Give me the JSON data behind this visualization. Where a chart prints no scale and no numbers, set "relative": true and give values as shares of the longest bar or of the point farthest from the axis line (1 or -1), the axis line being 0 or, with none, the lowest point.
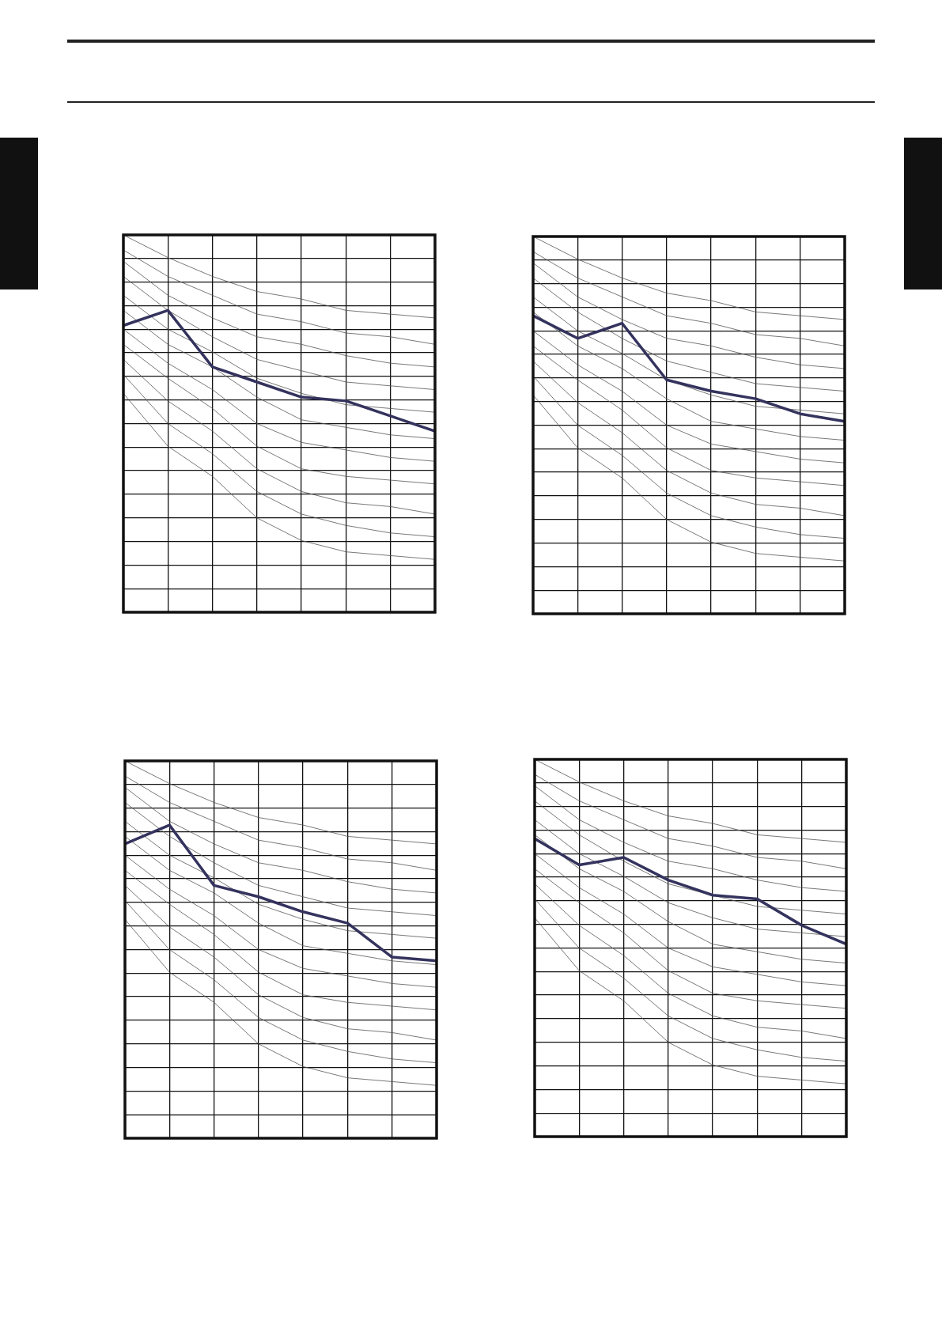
{
  "chart_data": [
    {
      "type": "line",
      "relative": true,
      "grid": true,
      "marker": "none",
      "categories": [
        null,
        null,
        null,
        null,
        null,
        null,
        null,
        null
      ],
      "series": [
        {
          "color": "#34335e",
          "values": [
            0.76,
            0.8,
            0.65,
            0.61,
            0.57,
            0.56,
            0.52,
            0.48
          ]
        },
        {
          "color": "#555555",
          "values": [
            1.0,
            0.94,
            0.89,
            0.85,
            0.83,
            0.8,
            0.79,
            0.78
          ]
        },
        {
          "color": "#555555",
          "values": [
            0.96,
            0.89,
            0.84,
            0.79,
            0.77,
            0.74,
            0.73,
            0.71
          ]
        },
        {
          "color": "#555555",
          "values": [
            0.93,
            0.84,
            0.78,
            0.73,
            0.71,
            0.68,
            0.66,
            0.65
          ]
        },
        {
          "color": "#555555",
          "values": [
            0.89,
            0.8,
            0.73,
            0.67,
            0.64,
            0.61,
            0.6,
            0.59
          ]
        },
        {
          "color": "#555555",
          "values": [
            0.84,
            0.75,
            0.69,
            0.62,
            0.58,
            0.55,
            0.54,
            0.53
          ]
        },
        {
          "color": "#555555",
          "values": [
            0.8,
            0.71,
            0.65,
            0.57,
            0.51,
            0.49,
            0.47,
            0.46
          ]
        },
        {
          "color": "#555555",
          "values": [
            0.75,
            0.66,
            0.59,
            0.5,
            0.45,
            0.43,
            0.41,
            0.4
          ]
        },
        {
          "color": "#555555",
          "values": [
            0.71,
            0.62,
            0.54,
            0.44,
            0.38,
            0.36,
            0.35,
            0.34
          ]
        },
        {
          "color": "#555555",
          "values": [
            0.67,
            0.56,
            0.48,
            0.38,
            0.32,
            0.29,
            0.28,
            0.26
          ]
        },
        {
          "color": "#555555",
          "values": [
            0.63,
            0.5,
            0.42,
            0.32,
            0.26,
            0.23,
            0.21,
            0.2
          ]
        },
        {
          "color": "#555555",
          "values": [
            0.58,
            0.44,
            0.36,
            0.25,
            0.19,
            0.16,
            0.15,
            0.14
          ]
        }
      ]
    },
    {
      "type": "line",
      "relative": true,
      "grid": true,
      "marker": "none",
      "categories": [
        null,
        null,
        null,
        null,
        null,
        null,
        null,
        null
      ],
      "series": [
        {
          "color": "#34335e",
          "values": [
            0.79,
            0.73,
            0.77,
            0.62,
            0.59,
            0.57,
            0.53,
            0.51
          ]
        },
        {
          "color": "#555555",
          "values": [
            1.0,
            0.94,
            0.89,
            0.85,
            0.83,
            0.8,
            0.79,
            0.78
          ]
        },
        {
          "color": "#555555",
          "values": [
            0.96,
            0.89,
            0.84,
            0.79,
            0.77,
            0.74,
            0.73,
            0.71
          ]
        },
        {
          "color": "#555555",
          "values": [
            0.93,
            0.84,
            0.78,
            0.73,
            0.71,
            0.68,
            0.66,
            0.65
          ]
        },
        {
          "color": "#555555",
          "values": [
            0.89,
            0.8,
            0.73,
            0.67,
            0.64,
            0.61,
            0.6,
            0.59
          ]
        },
        {
          "color": "#555555",
          "values": [
            0.84,
            0.75,
            0.69,
            0.62,
            0.58,
            0.55,
            0.54,
            0.53
          ]
        },
        {
          "color": "#555555",
          "values": [
            0.8,
            0.71,
            0.65,
            0.57,
            0.51,
            0.49,
            0.47,
            0.46
          ]
        },
        {
          "color": "#555555",
          "values": [
            0.75,
            0.66,
            0.59,
            0.5,
            0.45,
            0.43,
            0.41,
            0.4
          ]
        },
        {
          "color": "#555555",
          "values": [
            0.71,
            0.62,
            0.54,
            0.44,
            0.38,
            0.36,
            0.35,
            0.34
          ]
        },
        {
          "color": "#555555",
          "values": [
            0.67,
            0.56,
            0.48,
            0.38,
            0.32,
            0.29,
            0.28,
            0.26
          ]
        },
        {
          "color": "#555555",
          "values": [
            0.63,
            0.5,
            0.42,
            0.32,
            0.26,
            0.23,
            0.21,
            0.2
          ]
        },
        {
          "color": "#555555",
          "values": [
            0.58,
            0.44,
            0.36,
            0.25,
            0.19,
            0.16,
            0.15,
            0.14
          ]
        }
      ]
    },
    {
      "type": "line",
      "relative": true,
      "grid": true,
      "marker": "none",
      "categories": [
        null,
        null,
        null,
        null,
        null,
        null,
        null,
        null
      ],
      "series": [
        {
          "color": "#34335e",
          "values": [
            0.78,
            0.83,
            0.67,
            0.64,
            0.6,
            0.57,
            0.48,
            0.47
          ]
        },
        {
          "color": "#555555",
          "values": [
            1.0,
            0.94,
            0.89,
            0.85,
            0.83,
            0.8,
            0.79,
            0.78
          ]
        },
        {
          "color": "#555555",
          "values": [
            0.96,
            0.89,
            0.84,
            0.79,
            0.77,
            0.74,
            0.73,
            0.71
          ]
        },
        {
          "color": "#555555",
          "values": [
            0.93,
            0.84,
            0.78,
            0.73,
            0.71,
            0.68,
            0.66,
            0.65
          ]
        },
        {
          "color": "#555555",
          "values": [
            0.89,
            0.8,
            0.73,
            0.67,
            0.64,
            0.61,
            0.6,
            0.59
          ]
        },
        {
          "color": "#555555",
          "values": [
            0.84,
            0.75,
            0.69,
            0.62,
            0.58,
            0.55,
            0.54,
            0.53
          ]
        },
        {
          "color": "#555555",
          "values": [
            0.8,
            0.71,
            0.65,
            0.57,
            0.51,
            0.49,
            0.47,
            0.46
          ]
        },
        {
          "color": "#555555",
          "values": [
            0.75,
            0.66,
            0.59,
            0.5,
            0.45,
            0.43,
            0.41,
            0.4
          ]
        },
        {
          "color": "#555555",
          "values": [
            0.71,
            0.62,
            0.54,
            0.44,
            0.38,
            0.36,
            0.35,
            0.34
          ]
        },
        {
          "color": "#555555",
          "values": [
            0.67,
            0.56,
            0.48,
            0.38,
            0.32,
            0.29,
            0.28,
            0.26
          ]
        },
        {
          "color": "#555555",
          "values": [
            0.63,
            0.5,
            0.42,
            0.32,
            0.26,
            0.23,
            0.21,
            0.2
          ]
        },
        {
          "color": "#555555",
          "values": [
            0.58,
            0.44,
            0.36,
            0.25,
            0.19,
            0.16,
            0.15,
            0.14
          ]
        }
      ]
    },
    {
      "type": "line",
      "relative": true,
      "grid": true,
      "marker": "none",
      "categories": [
        null,
        null,
        null,
        null,
        null,
        null,
        null,
        null
      ],
      "series": [
        {
          "color": "#34335e",
          "values": [
            0.79,
            0.72,
            0.74,
            0.68,
            0.64,
            0.63,
            0.56,
            0.51
          ]
        },
        {
          "color": "#555555",
          "values": [
            1.0,
            0.94,
            0.89,
            0.85,
            0.83,
            0.8,
            0.79,
            0.78
          ]
        },
        {
          "color": "#555555",
          "values": [
            0.96,
            0.89,
            0.84,
            0.79,
            0.77,
            0.74,
            0.73,
            0.71
          ]
        },
        {
          "color": "#555555",
          "values": [
            0.93,
            0.84,
            0.78,
            0.73,
            0.71,
            0.68,
            0.66,
            0.65
          ]
        },
        {
          "color": "#555555",
          "values": [
            0.89,
            0.8,
            0.73,
            0.67,
            0.64,
            0.61,
            0.6,
            0.59
          ]
        },
        {
          "color": "#555555",
          "values": [
            0.84,
            0.75,
            0.69,
            0.62,
            0.58,
            0.55,
            0.54,
            0.53
          ]
        },
        {
          "color": "#555555",
          "values": [
            0.8,
            0.71,
            0.65,
            0.57,
            0.51,
            0.49,
            0.47,
            0.46
          ]
        },
        {
          "color": "#555555",
          "values": [
            0.75,
            0.66,
            0.59,
            0.5,
            0.45,
            0.43,
            0.41,
            0.4
          ]
        },
        {
          "color": "#555555",
          "values": [
            0.71,
            0.62,
            0.54,
            0.44,
            0.38,
            0.36,
            0.35,
            0.34
          ]
        },
        {
          "color": "#555555",
          "values": [
            0.67,
            0.56,
            0.48,
            0.38,
            0.32,
            0.29,
            0.28,
            0.26
          ]
        },
        {
          "color": "#555555",
          "values": [
            0.63,
            0.5,
            0.42,
            0.32,
            0.26,
            0.23,
            0.21,
            0.2
          ]
        },
        {
          "color": "#555555",
          "values": [
            0.58,
            0.44,
            0.36,
            0.25,
            0.19,
            0.16,
            0.15,
            0.14
          ]
        }
      ]
    }
  ]
}
